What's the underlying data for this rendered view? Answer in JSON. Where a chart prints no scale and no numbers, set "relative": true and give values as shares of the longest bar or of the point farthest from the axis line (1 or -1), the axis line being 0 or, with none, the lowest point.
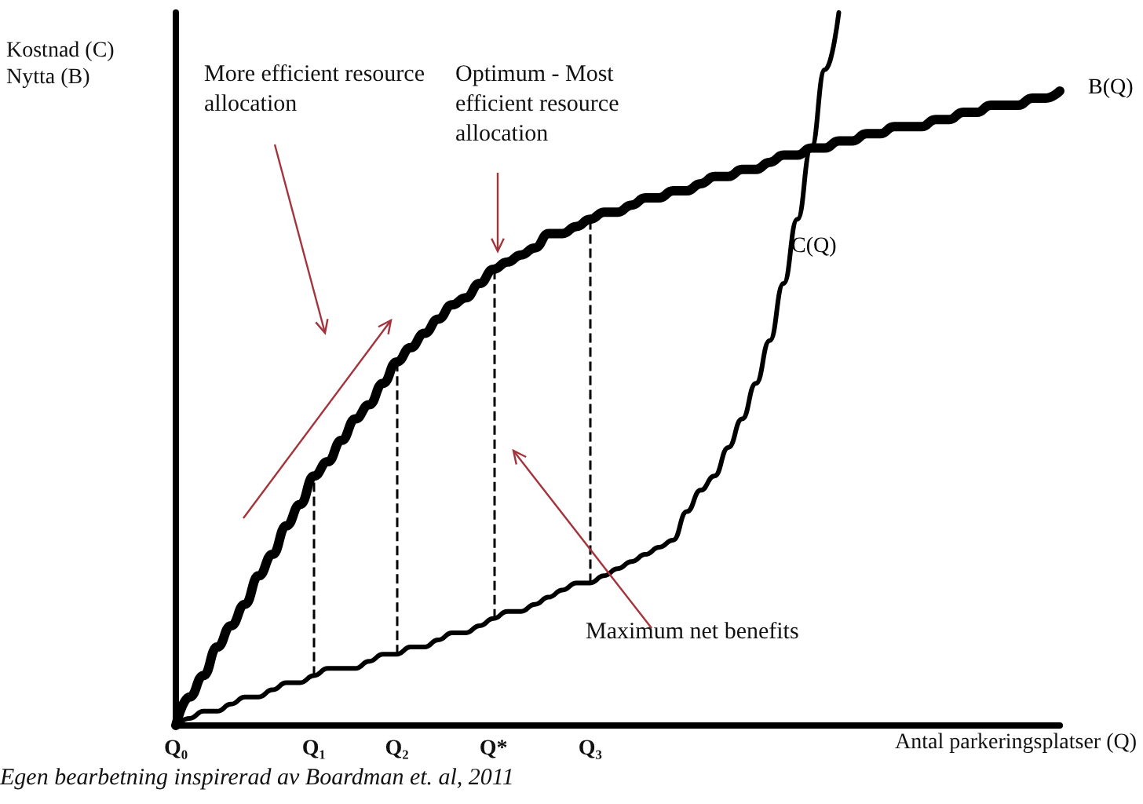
{
  "chart_data": {
    "type": "line",
    "relative": true,
    "xlabel": "Antal parkeringsplatser (Q)",
    "ylabel": "Kostnad (C)\nNytta (B)",
    "categories": [
      "Q₀",
      null,
      null,
      null,
      null,
      null,
      null,
      null,
      null,
      null,
      "Q₁",
      null,
      null,
      null,
      null,
      null,
      "Q₂",
      null,
      null,
      null,
      null,
      null,
      null,
      "Q*",
      null,
      null,
      null,
      null,
      null,
      null,
      "Q₃",
      null,
      null,
      null,
      null,
      null,
      null,
      null,
      null,
      null,
      null,
      null,
      null,
      null,
      null,
      null,
      null,
      null,
      null,
      null,
      null,
      null,
      null,
      null,
      null,
      null,
      null,
      null,
      null,
      null,
      null,
      null,
      null,
      null,
      null
    ],
    "series": [
      {
        "name": "B(Q)",
        "color": "#000000",
        "values": [
          0,
          0.04,
          0.07,
          0.11,
          0.14,
          0.17,
          0.21,
          0.24,
          0.28,
          0.31,
          0.35,
          0.37,
          0.4,
          0.43,
          0.45,
          0.48,
          0.51,
          0.53,
          0.55,
          0.57,
          0.59,
          0.6,
          0.62,
          0.64,
          0.65,
          0.66,
          0.67,
          0.69,
          0.69,
          0.7,
          0.71,
          0.72,
          0.72,
          0.73,
          0.74,
          0.74,
          0.75,
          0.75,
          0.76,
          0.77,
          0.77,
          0.78,
          0.78,
          0.79,
          0.8,
          0.8,
          0.81,
          0.81,
          0.82,
          0.82,
          0.83,
          0.83,
          0.84,
          0.84,
          0.84,
          0.85,
          0.85,
          0.86,
          0.86,
          0.87,
          0.87,
          0.87,
          0.88,
          0.88,
          0.89
        ]
      },
      {
        "name": "C(Q)",
        "color": "#000000",
        "values": [
          0,
          0.01,
          0.02,
          0.02,
          0.03,
          0.04,
          0.04,
          0.05,
          0.06,
          0.06,
          0.07,
          0.08,
          0.08,
          0.08,
          0.09,
          0.1,
          0.1,
          0.11,
          0.11,
          0.12,
          0.13,
          0.13,
          0.14,
          0.15,
          0.16,
          0.16,
          0.17,
          0.18,
          0.19,
          0.2,
          0.2,
          0.21,
          0.22,
          0.23,
          0.24,
          0.25,
          0.26,
          0.3,
          0.33,
          0.35,
          0.39,
          0.43,
          0.48,
          0.54,
          0.62,
          0.71,
          0.81,
          0.92,
          1,
          null,
          null,
          null,
          null,
          null,
          null,
          null,
          null,
          null,
          null,
          null,
          null,
          null,
          null,
          null,
          null
        ]
      }
    ],
    "ref_lines": [
      {
        "axis": "x",
        "value": "Q₁",
        "color": "#000000",
        "line_style": "dashed"
      },
      {
        "axis": "x",
        "value": "Q₂",
        "color": "#000000",
        "line_style": "dashed"
      },
      {
        "axis": "x",
        "value": "Q*",
        "color": "#000000",
        "line_style": "dashed"
      },
      {
        "axis": "x",
        "value": "Q₃",
        "color": "#000000",
        "line_style": "dashed"
      }
    ],
    "annotations": [
      "More efficient resource allocation",
      "Optimum - Most efficient resource allocation",
      "Maximum net benefits",
      "Egen bearbetning inspirerad av Boardman et. al, 2011"
    ],
    "legend": false,
    "grid": false
  }
}
